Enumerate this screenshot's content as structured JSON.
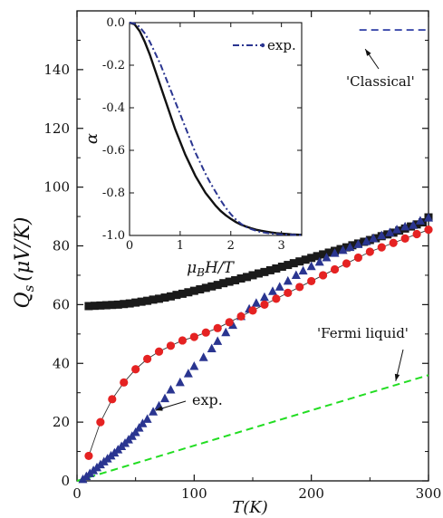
{
  "chart_data": [
    {
      "type": "scatter",
      "xlabel": "T(K)",
      "ylabel_main": "Q",
      "ylabel_sub": "s",
      "ylabel_units": "(μV/K)",
      "xlim": [
        0,
        300
      ],
      "ylim": [
        0,
        160
      ],
      "x_ticks": [
        0,
        100,
        200,
        300
      ],
      "x_minor_ticks": [
        50,
        150,
        250
      ],
      "y_ticks": [
        0,
        20,
        40,
        60,
        80,
        100,
        120,
        140
      ],
      "y_minor_ticks": [
        10,
        30,
        50,
        70,
        90,
        110,
        130,
        150
      ],
      "series": [
        {
          "marker": "square",
          "color": "#1a1a1a",
          "x": [
            10,
            15,
            20,
            25,
            30,
            35,
            40,
            45,
            50,
            55,
            60,
            65,
            70,
            75,
            80,
            85,
            90,
            95,
            100,
            105,
            110,
            115,
            120,
            125,
            130,
            135,
            140,
            145,
            150,
            155,
            160,
            165,
            170,
            175,
            180,
            185,
            190,
            195,
            200,
            205,
            210,
            215,
            220,
            225,
            230,
            235,
            240,
            245,
            250,
            255,
            260,
            265,
            270,
            275,
            280,
            285,
            290,
            295,
            300
          ],
          "y": [
            59.5,
            59.6,
            59.7,
            59.8,
            59.9,
            60.0,
            60.2,
            60.4,
            60.7,
            61.0,
            61.3,
            61.7,
            62.0,
            62.4,
            62.8,
            63.3,
            63.7,
            64.2,
            64.7,
            65.2,
            65.7,
            66.2,
            66.7,
            67.3,
            67.8,
            68.3,
            68.9,
            69.4,
            70.0,
            70.6,
            71.1,
            71.7,
            72.3,
            72.9,
            73.5,
            74.1,
            74.7,
            75.3,
            75.9,
            76.5,
            77.1,
            77.7,
            78.3,
            78.9,
            79.5,
            80.2,
            80.8,
            81.4,
            82.0,
            82.6,
            83.3,
            83.9,
            84.5,
            85.2,
            85.9,
            86.6,
            87.3,
            88.0,
            89.7
          ]
        },
        {
          "marker": "circle",
          "color": "#e52222",
          "connect": true,
          "line_color": "#333333",
          "x": [
            10,
            20,
            30,
            40,
            50,
            60,
            70,
            80,
            90,
            100,
            110,
            120,
            130,
            140,
            150,
            160,
            170,
            180,
            190,
            200,
            210,
            220,
            230,
            240,
            250,
            260,
            270,
            280,
            290,
            300
          ],
          "y": [
            8.5,
            20.0,
            27.8,
            33.5,
            38.0,
            41.5,
            44.0,
            46.0,
            47.8,
            49.0,
            50.5,
            52.0,
            54.0,
            56.0,
            58.0,
            60.0,
            62.0,
            64.0,
            66.0,
            68.0,
            70.0,
            72.0,
            74.0,
            76.0,
            78.0,
            79.5,
            81.0,
            82.5,
            84.0,
            85.5
          ]
        },
        {
          "marker": "triangle",
          "color": "#2a3590",
          "x": [
            5,
            8,
            11,
            14,
            17,
            20,
            23,
            26,
            29,
            32,
            35,
            38,
            41,
            44,
            47,
            50,
            53,
            56,
            60,
            65,
            70,
            75,
            80,
            88,
            95,
            100,
            108,
            115,
            120,
            127,
            133,
            140,
            147,
            153,
            160,
            167,
            173,
            180,
            187,
            193,
            200,
            207,
            213,
            220,
            227,
            233,
            240,
            247,
            253,
            260,
            267,
            273,
            280,
            287,
            293,
            300
          ],
          "y": [
            0.5,
            1.5,
            2.5,
            3.5,
            4.5,
            5.5,
            6.5,
            7.5,
            8.5,
            9.5,
            10.6,
            11.7,
            12.8,
            14.0,
            15.2,
            16.5,
            18.0,
            19.5,
            21.0,
            23.5,
            25.5,
            28.0,
            31.0,
            33.5,
            36.5,
            39.0,
            42.0,
            45.0,
            47.5,
            50.5,
            53.0,
            56.0,
            58.5,
            60.5,
            62.5,
            64.5,
            66.0,
            68.0,
            70.0,
            71.5,
            73.0,
            74.5,
            76.0,
            77.5,
            78.5,
            79.5,
            80.5,
            81.5,
            82.5,
            83.5,
            84.5,
            85.5,
            86.5,
            87.0,
            88.5,
            89.5
          ]
        },
        {
          "marker": "dash",
          "color": "#22dd22",
          "x": [
            0,
            300
          ],
          "y": [
            0,
            36
          ]
        },
        {
          "marker": "dash",
          "color": "#1f2f9e",
          "x": [
            241,
            300
          ],
          "y": [
            153.5,
            153.5
          ]
        }
      ],
      "annotations": [
        {
          "text": "'Classical'",
          "target": [
            246,
            147
          ]
        },
        {
          "text": "'Fermi liquid'",
          "target": [
            272,
            34
          ]
        },
        {
          "text": "exp.",
          "target": [
            67,
            24
          ]
        }
      ]
    },
    {
      "type": "line",
      "xlabel_main": "μ",
      "xlabel_sub": "B",
      "xlabel_rest": "H/T",
      "ylabel": "α",
      "xlim": [
        0,
        3.4
      ],
      "ylim": [
        -1.0,
        0.0
      ],
      "x_ticks": [
        0,
        1,
        2,
        3
      ],
      "y_ticks": [
        0.0,
        -0.2,
        -0.4,
        -0.6,
        -0.8,
        -1.0
      ],
      "y_tick_labels": [
        "0.0",
        "-0.2",
        "-0.4",
        "-0.6",
        "-0.8",
        "-1.0"
      ],
      "legend": {
        "label": "exp.",
        "placement": "top-right"
      },
      "series": [
        {
          "style": "solid",
          "color": "#111111",
          "x": [
            0,
            0.1,
            0.2,
            0.3,
            0.4,
            0.5,
            0.6,
            0.7,
            0.8,
            0.9,
            1.0,
            1.1,
            1.2,
            1.3,
            1.4,
            1.5,
            1.6,
            1.7,
            1.8,
            1.9,
            2.0,
            2.1,
            2.2,
            2.3,
            2.4,
            2.5,
            2.6,
            2.7,
            2.8,
            2.9,
            3.0,
            3.1,
            3.2,
            3.3,
            3.4
          ],
          "y": [
            0.0,
            -0.008,
            -0.04,
            -0.09,
            -0.15,
            -0.22,
            -0.29,
            -0.36,
            -0.43,
            -0.5,
            -0.56,
            -0.62,
            -0.67,
            -0.72,
            -0.76,
            -0.8,
            -0.83,
            -0.86,
            -0.885,
            -0.905,
            -0.922,
            -0.937,
            -0.949,
            -0.958,
            -0.966,
            -0.973,
            -0.978,
            -0.982,
            -0.986,
            -0.989,
            -0.991,
            -0.993,
            -0.995,
            -0.996,
            -0.997
          ]
        },
        {
          "style": "dash-dot",
          "color": "#2a3590",
          "x": [
            0,
            0.1,
            0.2,
            0.3,
            0.4,
            0.5,
            0.6,
            0.7,
            0.8,
            0.9,
            1.0,
            1.1,
            1.2,
            1.3,
            1.4,
            1.5,
            1.6,
            1.7,
            1.8,
            1.9,
            2.0,
            2.1,
            2.2,
            2.3,
            2.4,
            2.5,
            2.6,
            2.7,
            2.8,
            2.9,
            3.0,
            3.1,
            3.2,
            3.3,
            3.4
          ],
          "y": [
            0.0,
            -0.004,
            -0.02,
            -0.05,
            -0.09,
            -0.14,
            -0.19,
            -0.25,
            -0.31,
            -0.37,
            -0.43,
            -0.49,
            -0.55,
            -0.61,
            -0.66,
            -0.71,
            -0.755,
            -0.795,
            -0.835,
            -0.87,
            -0.9,
            -0.925,
            -0.945,
            -0.96,
            -0.97,
            -0.978,
            -0.984,
            -0.988,
            -0.991,
            -0.993,
            -0.995,
            -0.996,
            -0.997,
            -0.998,
            -0.998
          ]
        }
      ]
    }
  ]
}
